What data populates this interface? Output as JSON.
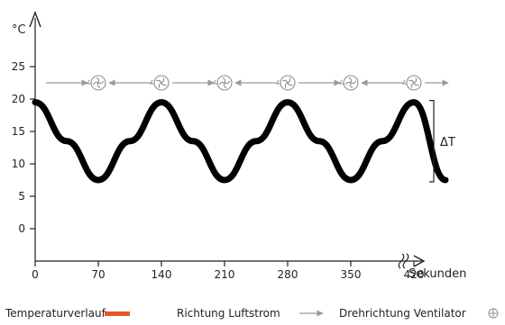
{
  "chart_data": {
    "type": "line",
    "ylabel": "°C",
    "xlabel": "Sekunden",
    "x_ticks": [
      0,
      70,
      140,
      210,
      280,
      350,
      420
    ],
    "y_ticks": [
      0,
      5,
      10,
      15,
      20,
      25
    ],
    "xlim": [
      0,
      490
    ],
    "ylim": [
      -3,
      32
    ],
    "series": [
      {
        "name": "Temperaturverlauf",
        "color": "#000000",
        "x": [
          0,
          35,
          70,
          105,
          140,
          175,
          210,
          245,
          280,
          315,
          350,
          385,
          420,
          455
        ],
        "y": [
          19.5,
          13.5,
          7.5,
          13.5,
          19.5,
          13.5,
          7.5,
          13.5,
          19.5,
          13.5,
          7.5,
          13.5,
          19.5,
          7.5
        ]
      }
    ],
    "fans_x": [
      70,
      140,
      210,
      280,
      350,
      420
    ],
    "fan_y": 22.5,
    "delta_label": "ΔT",
    "delta_range": [
      7.5,
      19.5
    ],
    "legend": [
      {
        "label": "Temperaturverlauf",
        "color": "#e2582a",
        "icon": "orange-bar"
      },
      {
        "label": "Richtung Luftstrom",
        "color": "#9a9a9a",
        "icon": "gray-arrow-icon"
      },
      {
        "label": "Drehrichtung Ventilator",
        "color": "#8f8f8f",
        "icon": "fan-icon"
      }
    ]
  }
}
